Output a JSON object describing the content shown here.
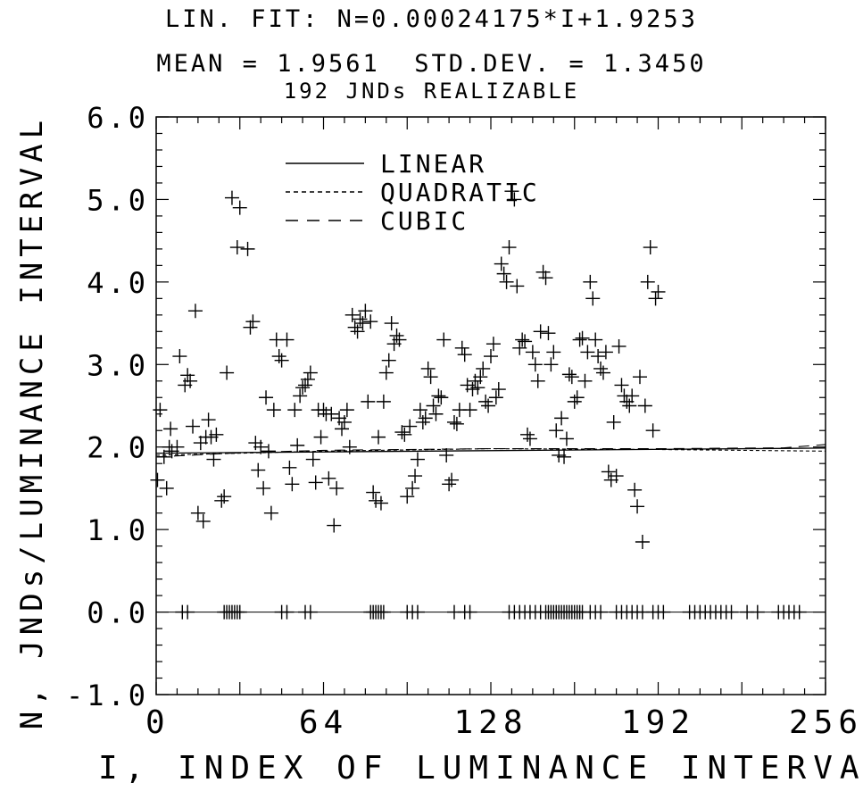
{
  "chart_data": {
    "type": "scatter",
    "title_lines": [
      "LIN. FIT: N=0.00024175*I+1.9253",
      "MEAN = 1.9561  STD.DEV. = 1.3450",
      "192 JNDs REALIZABLE"
    ],
    "xlabel": "I, INDEX OF LUMINANCE INTERVAL",
    "ylabel": "N, JNDs/LUMINANCE INTERVAL",
    "xlim": [
      0,
      256
    ],
    "ylim": [
      -1.0,
      6.0
    ],
    "x_ticks": [
      "0",
      "64",
      "128",
      "192",
      "256"
    ],
    "y_ticks": [
      "-1.0",
      "0.0",
      "1.0",
      "2.0",
      "3.0",
      "4.0",
      "5.0",
      "6.0"
    ],
    "legend": [
      "LINEAR",
      "QUADRATIC",
      "CUBIC"
    ],
    "legend_position": "top-center",
    "grid": false,
    "fits": {
      "linear": {
        "slope": 0.00024175,
        "intercept": 1.9253
      },
      "quadratic": [
        [
          0,
          1.9
        ],
        [
          64,
          1.95
        ],
        [
          128,
          1.98
        ],
        [
          192,
          1.97
        ],
        [
          256,
          1.95
        ]
      ],
      "cubic": [
        [
          0,
          1.88
        ],
        [
          32,
          1.93
        ],
        [
          64,
          1.96
        ],
        [
          128,
          1.98
        ],
        [
          192,
          1.98
        ],
        [
          240,
          1.99
        ],
        [
          256,
          2.03
        ]
      ]
    },
    "points_zero_x": [
      10,
      12,
      26,
      27,
      28,
      29,
      30,
      31,
      32,
      48,
      50,
      57,
      59,
      82,
      83,
      84,
      85,
      86,
      87,
      96,
      98,
      100,
      114,
      118,
      120,
      135,
      137,
      139,
      141,
      143,
      145,
      147,
      149,
      150,
      151,
      152,
      153,
      154,
      155,
      156,
      157,
      158,
      159,
      160,
      161,
      162,
      163,
      166,
      168,
      170,
      176,
      178,
      180,
      182,
      184,
      186,
      190,
      192,
      194,
      204,
      206,
      208,
      210,
      212,
      214,
      216,
      218,
      220,
      226,
      230,
      238,
      240,
      242,
      244,
      246
    ],
    "points": [
      [
        0.5,
        1.6
      ],
      [
        1.5,
        2.45
      ],
      [
        3,
        1.88
      ],
      [
        4,
        1.5
      ],
      [
        5,
        2.0
      ],
      [
        5.5,
        2.22
      ],
      [
        6,
        1.95
      ],
      [
        8,
        2.0
      ],
      [
        9,
        3.1
      ],
      [
        11,
        2.75
      ],
      [
        12,
        2.87
      ],
      [
        13,
        2.8
      ],
      [
        14,
        2.25
      ],
      [
        15,
        3.65
      ],
      [
        16,
        1.2
      ],
      [
        17,
        2.05
      ],
      [
        18,
        1.1
      ],
      [
        19,
        2.12
      ],
      [
        20,
        2.33
      ],
      [
        21,
        2.12
      ],
      [
        22,
        1.85
      ],
      [
        23,
        2.15
      ],
      [
        25,
        1.35
      ],
      [
        26,
        1.4
      ],
      [
        27,
        2.9
      ],
      [
        29,
        5.02
      ],
      [
        31,
        4.42
      ],
      [
        32,
        4.9
      ],
      [
        35,
        4.4
      ],
      [
        36,
        3.45
      ],
      [
        37,
        3.52
      ],
      [
        38,
        2.05
      ],
      [
        39,
        1.72
      ],
      [
        40,
        2.0
      ],
      [
        41,
        1.5
      ],
      [
        42,
        2.6
      ],
      [
        43,
        1.95
      ],
      [
        44,
        1.2
      ],
      [
        45,
        2.45
      ],
      [
        46,
        3.3
      ],
      [
        47,
        3.1
      ],
      [
        48,
        3.05
      ],
      [
        50,
        3.3
      ],
      [
        51,
        1.75
      ],
      [
        52,
        1.55
      ],
      [
        53,
        2.45
      ],
      [
        54,
        2.02
      ],
      [
        55,
        2.62
      ],
      [
        56,
        2.72
      ],
      [
        57,
        2.75
      ],
      [
        58,
        2.82
      ],
      [
        59,
        2.9
      ],
      [
        60,
        1.85
      ],
      [
        61,
        1.57
      ],
      [
        62,
        2.45
      ],
      [
        63,
        2.12
      ],
      [
        64,
        2.45
      ],
      [
        65,
        2.4
      ],
      [
        66,
        1.62
      ],
      [
        67,
        2.4
      ],
      [
        68,
        1.05
      ],
      [
        69,
        1.5
      ],
      [
        70,
        2.35
      ],
      [
        71,
        2.22
      ],
      [
        72,
        2.3
      ],
      [
        73,
        2.45
      ],
      [
        74,
        2.0
      ],
      [
        75,
        3.6
      ],
      [
        76,
        3.45
      ],
      [
        77,
        3.4
      ],
      [
        78,
        3.55
      ],
      [
        79,
        3.5
      ],
      [
        80,
        3.65
      ],
      [
        81,
        2.55
      ],
      [
        82,
        3.52
      ],
      [
        83,
        1.45
      ],
      [
        84,
        1.35
      ],
      [
        85,
        2.12
      ],
      [
        86,
        1.32
      ],
      [
        87,
        2.55
      ],
      [
        88,
        2.9
      ],
      [
        89,
        3.05
      ],
      [
        90,
        3.5
      ],
      [
        91,
        3.25
      ],
      [
        92,
        3.35
      ],
      [
        93,
        3.3
      ],
      [
        94,
        2.18
      ],
      [
        95,
        2.15
      ],
      [
        96,
        1.4
      ],
      [
        97,
        2.25
      ],
      [
        98,
        1.5
      ],
      [
        99,
        1.65
      ],
      [
        100,
        1.85
      ],
      [
        101,
        2.45
      ],
      [
        102,
        2.3
      ],
      [
        103,
        2.35
      ],
      [
        104,
        2.95
      ],
      [
        105,
        2.85
      ],
      [
        106,
        2.5
      ],
      [
        107,
        2.4
      ],
      [
        108,
        2.62
      ],
      [
        109,
        2.6
      ],
      [
        110,
        3.3
      ],
      [
        111,
        1.9
      ],
      [
        112,
        1.55
      ],
      [
        113,
        1.6
      ],
      [
        114,
        2.3
      ],
      [
        115,
        2.28
      ],
      [
        116,
        2.45
      ],
      [
        117,
        3.2
      ],
      [
        118,
        3.12
      ],
      [
        119,
        2.75
      ],
      [
        120,
        2.45
      ],
      [
        121,
        2.7
      ],
      [
        122,
        2.8
      ],
      [
        123,
        2.72
      ],
      [
        124,
        2.85
      ],
      [
        125,
        2.95
      ],
      [
        126,
        2.55
      ],
      [
        127,
        2.5
      ],
      [
        128,
        3.1
      ],
      [
        129,
        3.25
      ],
      [
        130,
        2.6
      ],
      [
        131,
        2.7
      ],
      [
        132,
        4.22
      ],
      [
        133,
        4.1
      ],
      [
        134,
        4.0
      ],
      [
        135,
        4.42
      ],
      [
        136,
        5.1
      ],
      [
        137,
        5.0
      ],
      [
        138,
        3.95
      ],
      [
        139,
        3.2
      ],
      [
        140,
        3.3
      ],
      [
        141,
        3.28
      ],
      [
        142,
        2.15
      ],
      [
        143,
        2.1
      ],
      [
        144,
        3.15
      ],
      [
        145,
        3.0
      ],
      [
        146,
        2.8
      ],
      [
        147,
        3.4
      ],
      [
        148,
        4.12
      ],
      [
        149,
        4.05
      ],
      [
        150,
        3.38
      ],
      [
        151,
        3.0
      ],
      [
        152,
        3.15
      ],
      [
        153,
        2.2
      ],
      [
        154,
        1.9
      ],
      [
        155,
        2.35
      ],
      [
        156,
        1.88
      ],
      [
        157,
        2.1
      ],
      [
        158,
        2.88
      ],
      [
        159,
        2.85
      ],
      [
        160,
        2.55
      ],
      [
        161,
        2.6
      ],
      [
        162,
        3.3
      ],
      [
        163,
        3.32
      ],
      [
        164,
        2.8
      ],
      [
        165,
        3.15
      ],
      [
        166,
        4.0
      ],
      [
        167,
        3.8
      ],
      [
        168,
        3.3
      ],
      [
        169,
        3.1
      ],
      [
        170,
        2.95
      ],
      [
        171,
        2.9
      ],
      [
        172,
        3.15
      ],
      [
        173,
        1.7
      ],
      [
        174,
        1.6
      ],
      [
        175,
        2.3
      ],
      [
        176,
        1.65
      ],
      [
        177,
        3.22
      ],
      [
        178,
        2.75
      ],
      [
        179,
        2.62
      ],
      [
        180,
        2.55
      ],
      [
        181,
        2.5
      ],
      [
        182,
        2.62
      ],
      [
        183,
        1.48
      ],
      [
        184,
        1.28
      ],
      [
        185,
        2.85
      ],
      [
        186,
        0.85
      ],
      [
        187,
        2.5
      ],
      [
        188,
        4.0
      ],
      [
        189,
        4.42
      ],
      [
        190,
        2.2
      ],
      [
        191,
        3.8
      ],
      [
        192,
        3.88
      ]
    ]
  }
}
